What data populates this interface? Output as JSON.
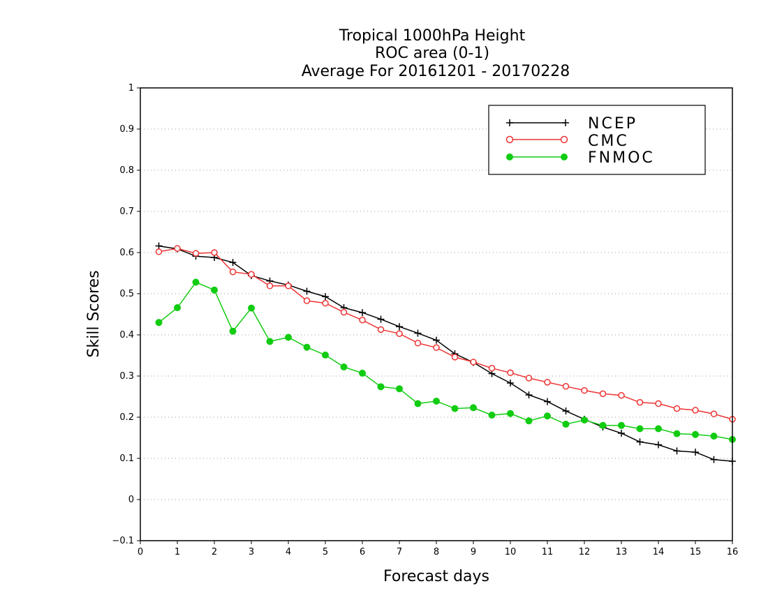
{
  "chart_data": {
    "type": "line",
    "title": [
      "Tropical 1000hPa Height",
      "ROC area (0-1)",
      "Average For 20161201 - 20170228"
    ],
    "xlabel": "Forecast days",
    "ylabel": "Skill Scores",
    "xlim": [
      0,
      16
    ],
    "ylim": [
      -0.1,
      1
    ],
    "xticks": [
      0,
      1,
      2,
      3,
      4,
      5,
      6,
      7,
      8,
      9,
      10,
      11,
      12,
      13,
      14,
      15,
      16
    ],
    "yticks": [
      -0.1,
      0,
      0.1,
      0.2,
      0.3,
      0.4,
      0.5,
      0.6,
      0.7,
      0.8,
      0.9,
      1
    ],
    "ytick_labels": [
      "−0.1",
      "0",
      "0.1",
      "0.2",
      "0.3",
      "0.4",
      "0.5",
      "0.6",
      "0.7",
      "0.8",
      "0.9",
      "1"
    ],
    "grid": "horizontal-dotted",
    "legend_position": "top-right",
    "x": [
      0.5,
      1,
      1.5,
      2,
      2.5,
      3,
      3.5,
      4,
      4.5,
      5,
      5.5,
      6,
      6.5,
      7,
      7.5,
      8,
      8.5,
      9,
      9.5,
      10,
      10.5,
      11,
      11.5,
      12,
      12.5,
      13,
      13.5,
      14,
      14.5,
      15,
      15.5,
      16
    ],
    "series": [
      {
        "name": "NCEP",
        "color": "#000000",
        "marker": "plus",
        "values": [
          0.616,
          0.609,
          0.591,
          0.588,
          0.576,
          0.544,
          0.531,
          0.521,
          0.506,
          0.493,
          0.466,
          0.454,
          0.438,
          0.42,
          0.404,
          0.387,
          0.354,
          0.333,
          0.306,
          0.283,
          0.254,
          0.238,
          0.215,
          0.195,
          0.176,
          0.161,
          0.14,
          0.133,
          0.118,
          0.115,
          0.097,
          0.093
        ]
      },
      {
        "name": "CMC",
        "color": "#ee3333",
        "marker": "open-circle",
        "values": [
          0.602,
          0.61,
          0.598,
          0.6,
          0.553,
          0.547,
          0.519,
          0.519,
          0.483,
          0.477,
          0.455,
          0.436,
          0.413,
          0.403,
          0.38,
          0.369,
          0.346,
          0.334,
          0.319,
          0.308,
          0.295,
          0.285,
          0.275,
          0.265,
          0.257,
          0.253,
          0.236,
          0.233,
          0.221,
          0.217,
          0.208,
          0.195
        ]
      },
      {
        "name": "FNMOC",
        "color": "#11cc11",
        "marker": "filled-circle",
        "values": [
          0.43,
          0.466,
          0.528,
          0.509,
          0.409,
          0.465,
          0.384,
          0.394,
          0.37,
          0.351,
          0.322,
          0.307,
          0.274,
          0.269,
          0.233,
          0.239,
          0.221,
          0.223,
          0.205,
          0.209,
          0.191,
          0.203,
          0.183,
          0.193,
          0.18,
          0.18,
          0.172,
          0.172,
          0.16,
          0.158,
          0.154,
          0.146
        ]
      }
    ]
  }
}
